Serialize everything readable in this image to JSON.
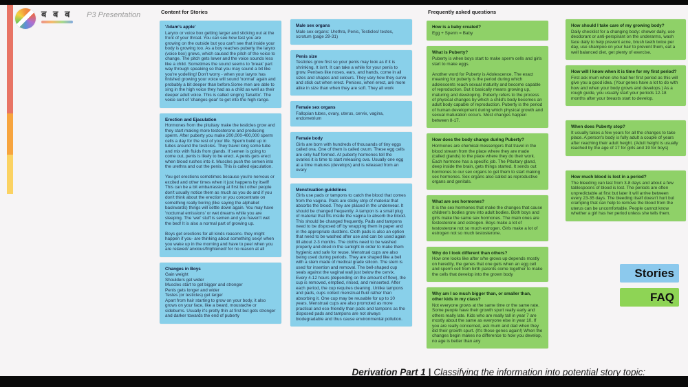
{
  "brand": {
    "logo_text": "ब ब ब",
    "product_name": "P3 Presentation"
  },
  "board": {
    "columns": [
      {
        "header": "Content for Stories",
        "type": "stories",
        "cards": [
          {
            "title": "'Adam's apple'",
            "body": "Larynx or voice box getting larger and sticking out at the front of your throat. You can see how fast you are growing on the outside but you can't see that inside your body is growing too. As a boy reaches puberty the larynx (voice box) grows, which caused the pitch of the voice to change. The pitch gets lower and the voice sounds less like a child. Sometimes the sound seems to 'break' part way through speaking so that you may sound a bit like you're yodelling! Don't worry - when your larynx has finished growing your voice will sound 'normal' again and probably a bit deeper than before.Some men are able to sing in the high voice they had as a child as well as their deeper adult voice. This is called singing 'falsetto'. The voice sort of 'changes gear' to get into the high range."
          },
          {
            "title": "Erection and Ejaculation",
            "body": "Hormones from the pituitary make the testicles grow and they start making more testosterone and producing sperm. After puberty you make 200,000-400,000 sperm cells a day for the rest of your life. Sperm build up in tubes around the testicles. They travel long some tube and mix with fluids from glands. If semen is going to come out, penis is likely to be erect. A penis gets erect when blood rushes into it. Muscles push the semen into the urethra and out the penis. This is called ejaculation.\n\nYou get erections sometimes because you're nervous or excited and other times when it just happens by itself! This can be a bit embarrassing at first but other people don't usually notice them as much as you do and if you don't think about the erection or you concentrate on something really boring (like saying the alphabet backwards) things will settle down again. You may have 'nocturnal emissions' or wet dreams while you are sleeping. The 'wet' stuff is semen and you haven't wet the bed! It is also a normal part of growing up.\n\nBoys get erections for all kinds reasons- they might happen if you- are thinking about something sexy/ when you wake up in the morning and have to pee/ when you are relaxed/ anxious/frightened/ for no reason at all"
          },
          {
            "title": "Changes in Boys",
            "body": "Gain weight\nShoulders get wider\nMuscles start to get bigger and stronger\nPenis gets longer and wider\nTestes (or testicles) get larger\nApart from hair starting to grow on your body, it also grows on your face, like a beard, moustache or sideburns. Usually it's pretty thin at first but gets stronger and darker towards the end of puberty"
          }
        ]
      },
      {
        "header": "",
        "type": "stories",
        "cards": [
          {
            "title": "Male sex organs",
            "body": "Male sex organs: Urethra, Penis, Testicles/ testes, scrotum (page 29-31)"
          },
          {
            "title": "Penis size",
            "body": "Testicles grow first so your penis may look as if it is shrinking. It isn't. It can take a while for your penis to grow. Penises like noses, ears, and hands, come in all sizes and shapes and colours. They vary how they curve and stick out when erect. Penises, when erect, are more alike in size than when they are soft. They all work"
          },
          {
            "title": "Female sex organs",
            "body": "Fallopian tubes, ovary, uterus, cervix, vagina, endometrium"
          },
          {
            "title": "Female body",
            "body": "Girls are born with hundreds of thousands of tiny eggs called ova. One of them is called ovum. These egg cells are only half formed. At puberty hormones tell the ovaries it is time to start releasing ova. Usually one egg at a time matures (develops) and is released from an ovary"
          },
          {
            "title": "Menstruation guidelines",
            "body": "Girls use pads or tampons to catch the blood that comes from the vagina. Pads are sticky strip of material that absorbs the blood. They are placed in the underwear. It should be changed frequently. A tampon is a small plug of material that fits inside the vagina to absorb the blood. This should be changed frequently. Pads and tampons need to be disposed off by wrapping them in paper and in the appropriate dustbins. Cloth pads is also an option that need to be washed after use and can be used again till about 2-3 months. The cloths need to be washed properly and dried in the sunlight in order to make them hygienic and safe for reuse. Menstrual cups are also being used during periods. They are shaped like a bell with a stem made of medical grade silicon. The stem is used for insertion and removal. The bell-shaped cup seals against the vaginal wall just below the cervix. Every 4-12 hours (depending on the amount of flow), the cup is removed, emptied, rinsed, and reinserted. After each period, the cup requires cleaning. Unlike tampons and pads, cups collect menstrual fluid rather than absorbing it. One cup may be reusable for up to 10 years. Menstrual cups are also promoted as more practical and eco-friendly than pads and tampons as the disposed pads and tampons are not always biodegradable and thus cause environmental pollution."
          }
        ]
      },
      {
        "header": "Frequently asked questions",
        "type": "faq",
        "cards": [
          {
            "title": "How is a baby created?",
            "body": "Egg + Sperm = Baby"
          },
          {
            "title": "What is Puberty?",
            "body": "Puberty is when boys start to make sperm cells and girls start to make eggs.\n\nAnother word for Puberty is Adolescence. The exact meaning for puberty is the period during which adolescents reach sexual maturity and become capable of reproduction. But it basically means growing up, maturing and developing. Puberty refers to the process of physical changes by which a child's body becomes an adult body capable of reproduction. Puberty is the period of human development during which physical growth and sexual maturation occurs. Most changes happen between 8-17."
          },
          {
            "title": "How does the body change during Puberty?",
            "body": "Hormones are chemical messengers that travel in the blood stream from the place where they are made (called glands) to the place where they do their work. Each hormone has a specific job. The Pituitary gland, deep inside the brain, gets things started. It sends out hormones to our sex organs to get them to start making sex hormones. Sex organs also called as reproductive organs and genitals."
          },
          {
            "title": "What are sex hormones?",
            "body": "It is the sex hormones that make the changes that cause children's bodies grow into adult bodies. Both boys and girls make the same sex hormones. The main ones are testosterone and estrogen. Boys make a lot of testosterone not so much estrogen. Girls make a lot of estrogen not so much testosterone."
          },
          {
            "title": "Why do I look different than others?",
            "body": "How one looks like after s/he grows up depends mostly on heredity, the genes that one gets when an egg cell and sperm cell from birth parents come together to make the cells that develop into the grown body"
          },
          {
            "title": "Why am I so much bigger than, or smaller than, other kids in my class?",
            "body": "Not everyone grows at the same time or the same rate. Some people have their growth spurt really early and others really late. Kids who are really tall in year 7 are mostly about the same as everyone else in year 10. If you are really concerned, ask mum and dad when they did their growth spurt. (It's those genes again!) When the changes begin makes no difference to how you develop, no age is better than any"
          }
        ]
      },
      {
        "header": "",
        "type": "faq",
        "cards": [
          {
            "title": "How should I take care of my growing body?",
            "body": "Daily checklist for a changing body: shower daily, use deodorant or anti-perspirant on the underarms, wash face daily to help prevent acne, brush teeth twice per day, use shampoo on your hair to prevent them, eat a well balanced diet, get plenty of exercise."
          },
          {
            "title": "How will I know when it is time for my first period?",
            "body": "First ask mum when she had her first period as this will give you a good idea. (Your genes have a lot to do with how and when your body grows and develops.) As a rough guide, you usually start your periods 12-18 months after your breasts start to develop."
          },
          {
            "title": "When does Puberty stop?",
            "body": "It usually takes a few years for all the changes to take place. A person's body is fully adult a couple of years after reaching their adult height. (Adult height is usually reached by the age of 17 for girls and 19 for boys)"
          },
          {
            "title": "How much blood is lost in a period?",
            "body": "The bleeding can last from 3-8 days and about a few tablespoons of blood is lost. The periods are often unpredictable at first but later it will arrive between every 23-35 days. The bleeding itself doesn't hurt but cramping that can help to remove the blood from the uterus can be uncomfortable. People cannot know whether a girl has her period unless she tells them."
          }
        ]
      }
    ]
  },
  "legend": {
    "stories_label": "Stories",
    "faq_label": "FAQ"
  },
  "caption": {
    "lead": "Derivation Part 1 |",
    "text": "Classifying the information into potential story topic:"
  },
  "colors": {
    "stories_card": "#89d0ea",
    "faq_card": "#8fd168",
    "stories_chip": "#8cc9ed",
    "faq_chip": "#8ed455",
    "strip_red": "#e87465",
    "strip_orange": "#f7a43e",
    "strip_yellow": "#fbd262",
    "letterbox": "#0a0a0a",
    "background": "#f6f4f5"
  }
}
